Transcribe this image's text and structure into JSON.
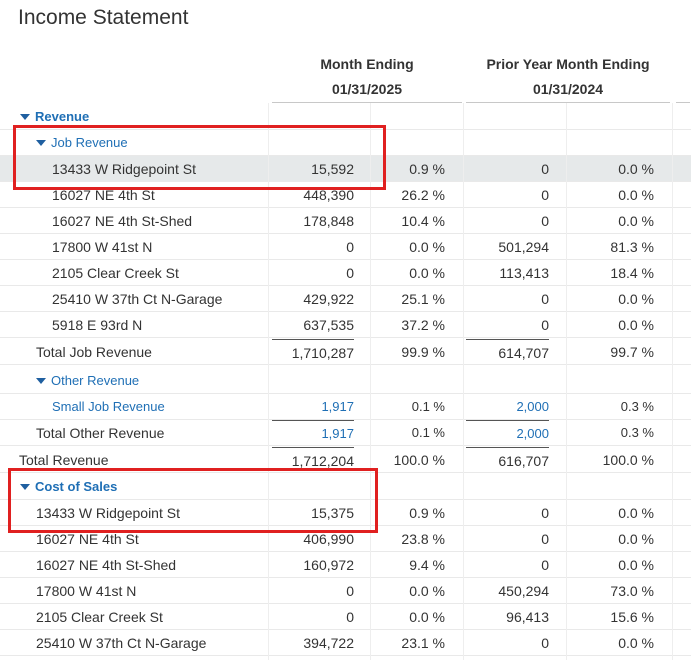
{
  "title": "Income Statement",
  "headers": {
    "col1_title": "Month Ending",
    "col1_date": "01/31/2025",
    "col2_title": "Prior Year Month Ending",
    "col2_date": "01/31/2024"
  },
  "sections": {
    "revenue": "Revenue",
    "job_revenue": "Job Revenue",
    "other_revenue": "Other Revenue",
    "cost_of_sales": "Cost of Sales"
  },
  "rows": [
    {
      "label": "13433 W Ridgepoint St",
      "v1": "15,592",
      "p1": "0.9 %",
      "v2": "0",
      "p2": "0.0 %"
    },
    {
      "label": "16027 NE 4th St",
      "v1": "448,390",
      "p1": "26.2 %",
      "v2": "0",
      "p2": "0.0 %"
    },
    {
      "label": "16027 NE 4th St-Shed",
      "v1": "178,848",
      "p1": "10.4 %",
      "v2": "0",
      "p2": "0.0 %"
    },
    {
      "label": "17800 W 41st N",
      "v1": "0",
      "p1": "0.0 %",
      "v2": "501,294",
      "p2": "81.3 %"
    },
    {
      "label": "2105 Clear Creek St",
      "v1": "0",
      "p1": "0.0 %",
      "v2": "113,413",
      "p2": "18.4 %"
    },
    {
      "label": "25410 W 37th Ct N-Garage",
      "v1": "429,922",
      "p1": "25.1 %",
      "v2": "0",
      "p2": "0.0 %"
    },
    {
      "label": "5918 E 93rd N",
      "v1": "637,535",
      "p1": "37.2 %",
      "v2": "0",
      "p2": "0.0 %"
    },
    {
      "label": "Total Job Revenue",
      "v1": "1,710,287",
      "p1": "99.9 %",
      "v2": "614,707",
      "p2": "99.7 %"
    },
    {
      "label": "Small Job Revenue",
      "v1": "1,917",
      "p1": "0.1 %",
      "v2": "2,000",
      "p2": "0.3 %"
    },
    {
      "label": "Total Other Revenue",
      "v1": "1,917",
      "p1": "0.1 %",
      "v2": "2,000",
      "p2": "0.3 %"
    },
    {
      "label": "Total Revenue",
      "v1": "1,712,204",
      "p1": "100.0 %",
      "v2": "616,707",
      "p2": "100.0 %"
    },
    {
      "label": "13433 W Ridgepoint St",
      "v1": "15,375",
      "p1": "0.9 %",
      "v2": "0",
      "p2": "0.0 %"
    },
    {
      "label": "16027 NE 4th St",
      "v1": "406,990",
      "p1": "23.8 %",
      "v2": "0",
      "p2": "0.0 %"
    },
    {
      "label": "16027 NE 4th St-Shed",
      "v1": "160,972",
      "p1": "9.4 %",
      "v2": "0",
      "p2": "0.0 %"
    },
    {
      "label": "17800 W 41st N",
      "v1": "0",
      "p1": "0.0 %",
      "v2": "450,294",
      "p2": "73.0 %"
    },
    {
      "label": "2105 Clear Creek St",
      "v1": "0",
      "p1": "0.0 %",
      "v2": "96,413",
      "p2": "15.6 %"
    },
    {
      "label": "25410 W 37th Ct N-Garage",
      "v1": "394,722",
      "p1": "23.1 %",
      "v2": "0",
      "p2": "0.0 %"
    }
  ]
}
